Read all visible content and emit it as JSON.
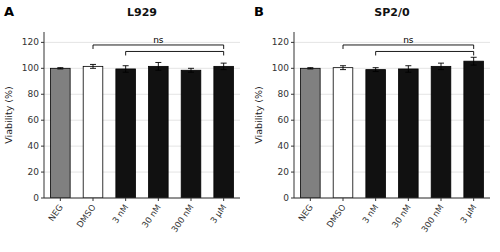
{
  "chart_data": [
    {
      "type": "bar",
      "title": "L929",
      "label": "A",
      "categories": [
        "NEG",
        "DMSO",
        "3 nM",
        "30 nM",
        "300 nM",
        "3 μM"
      ],
      "values": [
        100,
        101.5,
        99.5,
        101.5,
        98.5,
        101.5
      ],
      "errors": [
        0.5,
        1.5,
        2.5,
        3.0,
        1.5,
        2.5
      ],
      "colors": [
        "#808080",
        "#ffffff",
        "#111111",
        "#111111",
        "#111111",
        "#111111"
      ],
      "ylabel": "Viability (%)",
      "ylim": [
        0,
        128
      ],
      "yticks": [
        0,
        20,
        40,
        60,
        80,
        100,
        120
      ],
      "brackets": [
        {
          "from": "DMSO",
          "to": "3 μM",
          "y": 118,
          "label": "ns"
        },
        {
          "from": "3 nM",
          "to": "3 μM",
          "y": 113
        }
      ]
    },
    {
      "type": "bar",
      "title": "SP2/0",
      "label": "B",
      "categories": [
        "NEG",
        "DMSO",
        "3 nM",
        "30 nM",
        "300 nM",
        "3 μM"
      ],
      "values": [
        100,
        100.5,
        99.0,
        99.5,
        101.5,
        105.5
      ],
      "errors": [
        0.5,
        1.5,
        1.5,
        2.5,
        2.5,
        3.0
      ],
      "colors": [
        "#808080",
        "#ffffff",
        "#111111",
        "#111111",
        "#111111",
        "#111111"
      ],
      "ylabel": "Viability (%)",
      "ylim": [
        0,
        128
      ],
      "yticks": [
        0,
        20,
        40,
        60,
        80,
        100,
        120
      ],
      "brackets": [
        {
          "from": "DMSO",
          "to": "3 μM",
          "y": 118,
          "label": "ns"
        },
        {
          "from": "3 nM",
          "to": "3 μM",
          "y": 113
        }
      ]
    }
  ]
}
